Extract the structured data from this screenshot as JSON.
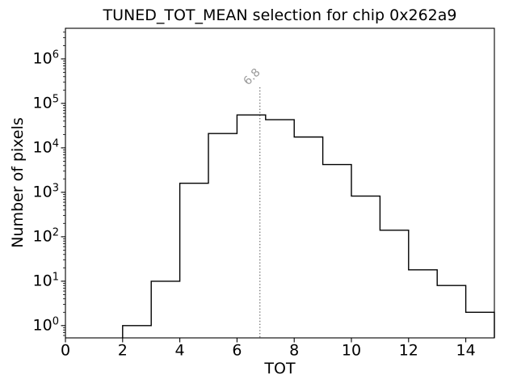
{
  "title": "TUNED_TOT_MEAN selection for chip 0x262a9",
  "chart_data": {
    "type": "step-histogram",
    "title": "TUNED_TOT_MEAN selection for chip 0x262a9",
    "xlabel": "TOT",
    "ylabel": "Number of pixels",
    "yscale": "log",
    "grid": false,
    "xlim": [
      0,
      15
    ],
    "ylim_log": [
      0.53,
      4900000
    ],
    "xticks": [
      0,
      2,
      4,
      6,
      8,
      10,
      12,
      14
    ],
    "ytick_exponents": [
      0,
      1,
      2,
      3,
      4,
      5,
      6
    ],
    "bin_edges": [
      0,
      1,
      2,
      3,
      4,
      5,
      6,
      7,
      8,
      9,
      10,
      11,
      12,
      13,
      14,
      15
    ],
    "counts": [
      0,
      0,
      1,
      10,
      1600,
      21000,
      55000,
      43000,
      17500,
      4200,
      820,
      140,
      18,
      8,
      2
    ],
    "line_color": "#000000",
    "vline": {
      "x": 6.8,
      "label": "6.8",
      "color": "#808080",
      "style": "dotted",
      "label_color": "#999999",
      "label_rotation_deg": -45
    }
  }
}
